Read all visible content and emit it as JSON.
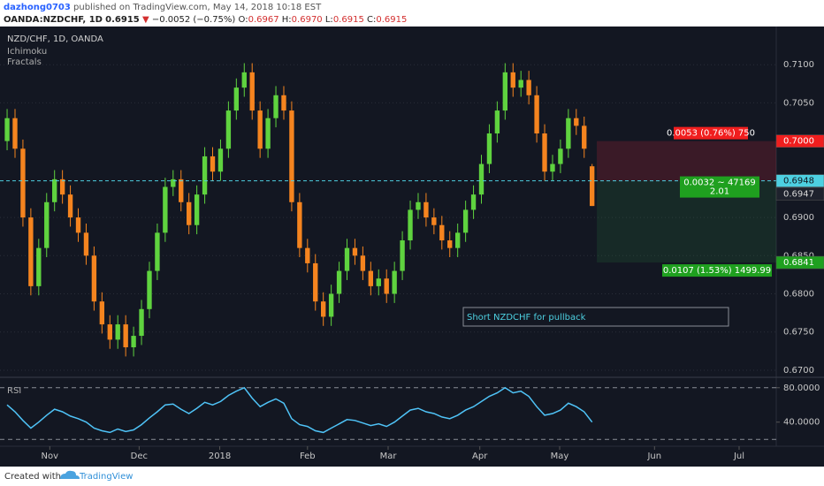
{
  "header": {
    "author": "dazhong0703",
    "published": "published on TradingView.com, May 14, 2018 10:18 EST",
    "symbol": "OANDA:NZDCHF, 1D",
    "last": "0.6915",
    "arrow": "▼",
    "change": "−0.0052 (−0.75%)",
    "ohlc": [
      {
        "key": "O:",
        "value": "0.6967"
      },
      {
        "key": "H:",
        "value": "0.6970"
      },
      {
        "key": "L:",
        "value": "0.6915"
      },
      {
        "key": "C:",
        "value": "0.6915"
      }
    ]
  },
  "footer": {
    "created": "Created with",
    "brand": "TradingView"
  },
  "chart_data": [
    {
      "type": "candlestick",
      "title": "NZD/CHF, 1D, OANDA",
      "indicators": [
        "Ichimoku",
        "Fractals"
      ],
      "up_color": "#5fd33f",
      "down_color": "#f5841f",
      "open": [
        0.7,
        0.703,
        0.699,
        0.69,
        0.681,
        0.686,
        0.692,
        0.695,
        0.693,
        0.69,
        0.688,
        0.685,
        0.679,
        0.676,
        0.674,
        0.676,
        0.673,
        0.6745,
        0.678,
        0.683,
        0.688,
        0.694,
        0.695,
        0.692,
        0.689,
        0.693,
        0.698,
        0.696,
        0.699,
        0.704,
        0.707,
        0.709,
        0.704,
        0.699,
        0.703,
        0.706,
        0.704,
        0.692,
        0.686,
        0.684,
        0.679,
        0.677,
        0.68,
        0.683,
        0.686,
        0.685,
        0.683,
        0.681,
        0.682,
        0.68,
        0.683,
        0.687,
        0.691,
        0.692,
        0.69,
        0.689,
        0.687,
        0.686,
        0.688,
        0.691,
        0.693,
        0.697,
        0.701,
        0.704,
        0.709,
        0.707,
        0.708,
        0.706,
        0.701,
        0.696,
        0.697,
        0.699,
        0.703,
        0.702,
        0.6967
      ],
      "high": [
        0.7042,
        0.7042,
        0.7002,
        0.6912,
        0.6872,
        0.6932,
        0.6962,
        0.6962,
        0.6942,
        0.6912,
        0.6892,
        0.6862,
        0.6802,
        0.6772,
        0.6772,
        0.6772,
        0.6757,
        0.6792,
        0.6842,
        0.6892,
        0.6952,
        0.6962,
        0.6962,
        0.6932,
        0.6942,
        0.6992,
        0.6992,
        0.7002,
        0.7052,
        0.7082,
        0.7102,
        0.7102,
        0.7052,
        0.7042,
        0.7072,
        0.7072,
        0.7052,
        0.6932,
        0.6872,
        0.6852,
        0.6802,
        0.6812,
        0.6842,
        0.6872,
        0.6872,
        0.6862,
        0.6842,
        0.6832,
        0.6832,
        0.6842,
        0.6882,
        0.6922,
        0.6932,
        0.6932,
        0.6912,
        0.6902,
        0.6882,
        0.6892,
        0.6922,
        0.6942,
        0.6982,
        0.7022,
        0.7052,
        0.7102,
        0.7102,
        0.7092,
        0.7092,
        0.7072,
        0.7022,
        0.6982,
        0.7002,
        0.7042,
        0.7042,
        0.7032,
        0.697
      ],
      "low": [
        0.6988,
        0.6978,
        0.6888,
        0.6798,
        0.6798,
        0.6848,
        0.6908,
        0.6918,
        0.6888,
        0.6868,
        0.6838,
        0.6778,
        0.6748,
        0.6728,
        0.6728,
        0.6718,
        0.6718,
        0.6733,
        0.6768,
        0.6818,
        0.6868,
        0.6928,
        0.6908,
        0.6878,
        0.6878,
        0.6918,
        0.6948,
        0.6948,
        0.6978,
        0.7028,
        0.7058,
        0.7028,
        0.6978,
        0.6978,
        0.7018,
        0.7028,
        0.6908,
        0.6848,
        0.6828,
        0.6778,
        0.6758,
        0.6758,
        0.6788,
        0.6818,
        0.6838,
        0.6818,
        0.6798,
        0.6798,
        0.6788,
        0.6788,
        0.6818,
        0.6858,
        0.6898,
        0.6888,
        0.6878,
        0.6858,
        0.6848,
        0.6848,
        0.6868,
        0.6898,
        0.6918,
        0.6958,
        0.6998,
        0.7028,
        0.7058,
        0.7058,
        0.7048,
        0.6998,
        0.6948,
        0.6948,
        0.6958,
        0.6978,
        0.7008,
        0.6978,
        0.6915
      ],
      "close": [
        0.703,
        0.699,
        0.69,
        0.681,
        0.686,
        0.692,
        0.695,
        0.693,
        0.69,
        0.688,
        0.685,
        0.679,
        0.676,
        0.674,
        0.676,
        0.673,
        0.6745,
        0.678,
        0.683,
        0.688,
        0.694,
        0.695,
        0.692,
        0.689,
        0.693,
        0.698,
        0.696,
        0.699,
        0.704,
        0.707,
        0.709,
        0.704,
        0.699,
        0.703,
        0.706,
        0.704,
        0.692,
        0.686,
        0.684,
        0.679,
        0.677,
        0.68,
        0.683,
        0.686,
        0.685,
        0.683,
        0.681,
        0.682,
        0.68,
        0.683,
        0.687,
        0.691,
        0.692,
        0.69,
        0.689,
        0.687,
        0.686,
        0.688,
        0.691,
        0.693,
        0.697,
        0.701,
        0.704,
        0.709,
        0.707,
        0.708,
        0.706,
        0.701,
        0.696,
        0.697,
        0.699,
        0.703,
        0.702,
        0.699,
        0.6915
      ],
      "xlim": [
        -0.9,
        97.3
      ],
      "xticks": [
        {
          "value": 5.4,
          "label": "Nov"
        },
        {
          "value": 16.7,
          "label": "Dec"
        },
        {
          "value": 26.9,
          "label": "2018"
        },
        {
          "value": 38,
          "label": "Feb"
        },
        {
          "value": 48.2,
          "label": "Mar"
        },
        {
          "value": 59.8,
          "label": "Apr"
        },
        {
          "value": 69.9,
          "label": "May"
        },
        {
          "value": 81.9,
          "label": "Jun"
        },
        {
          "value": 92.6,
          "label": "Jul"
        }
      ],
      "ylim": [
        0.6693,
        0.715
      ],
      "yticks": [
        {
          "value": 0.71,
          "label": "0.7100"
        },
        {
          "value": 0.705,
          "label": "0.7050"
        },
        {
          "value": 0.69,
          "label": "0.6900"
        },
        {
          "value": 0.685,
          "label": "0.6850"
        },
        {
          "value": 0.68,
          "label": "0.6800"
        },
        {
          "value": 0.675,
          "label": "0.6750"
        },
        {
          "value": 0.67,
          "label": "0.6700"
        }
      ],
      "grid": true,
      "annotation": "Short NZDCHF for pullback",
      "position": {
        "entry": 0.6948,
        "stop": 0.7,
        "target": 0.6841,
        "stop_label": "0.0053 (0.76%) 750",
        "info_label": [
          "0.0032 ~ 47169",
          "2.01"
        ],
        "target_label": "0.0107 (1.53%) 1499.99"
      },
      "price_tags": [
        {
          "value": 0.7,
          "label": "0.7000",
          "color": "#f01e1e",
          "text_color": "#ffffff"
        },
        {
          "value": 0.6948,
          "label": "0.6948",
          "color": "#4dd0e1",
          "text_color": "#10161e"
        },
        {
          "value": 0.6947,
          "label": "0.6947",
          "color": "#1e222d",
          "text_color": "#d8d8d8"
        },
        {
          "value": 0.6841,
          "label": "0.6841",
          "color": "#1fa01f",
          "text_color": "#ffffff"
        }
      ]
    },
    {
      "type": "line",
      "title": "RSI",
      "color": "#4fc3f7",
      "values": [
        60,
        52,
        42,
        33,
        40,
        48,
        55,
        52,
        47,
        44,
        40,
        33,
        30,
        28,
        32,
        29,
        31,
        37,
        45,
        52,
        60,
        61,
        55,
        50,
        56,
        63,
        60,
        64,
        71,
        76,
        80,
        68,
        58,
        63,
        67,
        62,
        44,
        37,
        35,
        30,
        28,
        33,
        38,
        43,
        42,
        39,
        36,
        38,
        35,
        40,
        47,
        54,
        56,
        52,
        50,
        46,
        44,
        48,
        54,
        58,
        64,
        70,
        74,
        80,
        74,
        76,
        70,
        58,
        48,
        50,
        54,
        62,
        58,
        52,
        40
      ],
      "ylim": [
        12,
        89
      ],
      "yticks": [
        {
          "value": 80,
          "label": "80.0000"
        },
        {
          "value": 40,
          "label": "40.0000"
        }
      ],
      "bands": [
        80,
        20
      ]
    }
  ]
}
